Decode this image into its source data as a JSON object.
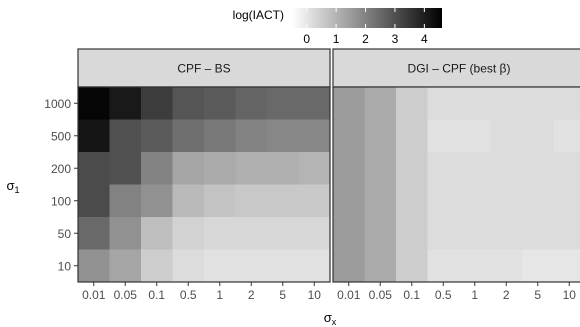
{
  "chart_data": {
    "type": "heatmap",
    "xlabel": "σ",
    "xlabel_sub": "x",
    "ylabel": "σ",
    "ylabel_sub": "1",
    "x_categories": [
      "0.01",
      "0.05",
      "0.1",
      "0.5",
      "1",
      "2",
      "5",
      "10"
    ],
    "y_categories": [
      "1000",
      "500",
      "200",
      "100",
      "50",
      "10"
    ],
    "legend": {
      "title": "log(IACT)",
      "ticks": [
        "0",
        "1",
        "2",
        "3",
        "4"
      ],
      "range": [
        -0.5,
        4.6
      ],
      "position": "top"
    },
    "panels": [
      {
        "title": "CPF – BS",
        "values": [
          [
            4.5,
            4.1,
            3.4,
            2.9,
            2.8,
            2.6,
            2.5,
            2.5
          ],
          [
            4.2,
            3.0,
            2.8,
            2.4,
            2.2,
            2.0,
            1.9,
            1.9
          ],
          [
            3.1,
            3.0,
            2.0,
            1.3,
            1.2,
            1.1,
            1.1,
            1.0
          ],
          [
            3.1,
            2.0,
            1.7,
            0.9,
            0.7,
            0.6,
            0.6,
            0.6
          ],
          [
            2.5,
            1.7,
            0.8,
            0.4,
            0.3,
            0.3,
            0.3,
            0.3
          ],
          [
            1.7,
            1.3,
            0.5,
            0.2,
            0.1,
            0.1,
            0.1,
            0.1
          ]
        ]
      },
      {
        "title": "DGI – CPF (best β)",
        "values": [
          [
            1.5,
            1.2,
            0.5,
            0.2,
            0.2,
            0.2,
            0.2,
            0.2
          ],
          [
            1.5,
            1.2,
            0.5,
            0.1,
            0.1,
            0.2,
            0.2,
            0.1
          ],
          [
            1.5,
            1.2,
            0.5,
            0.2,
            0.2,
            0.2,
            0.2,
            0.2
          ],
          [
            1.5,
            1.2,
            0.5,
            0.2,
            0.2,
            0.2,
            0.2,
            0.2
          ],
          [
            1.5,
            1.2,
            0.5,
            0.2,
            0.2,
            0.2,
            0.2,
            0.2
          ],
          [
            1.5,
            1.2,
            0.5,
            0.1,
            0.1,
            0.1,
            0.0,
            0.0
          ]
        ]
      }
    ],
    "colors": {
      "low": "#ffffff",
      "high": "#000000",
      "strip_bg": "#d9d9d9",
      "strip_border": "#333333"
    },
    "grid": false
  }
}
